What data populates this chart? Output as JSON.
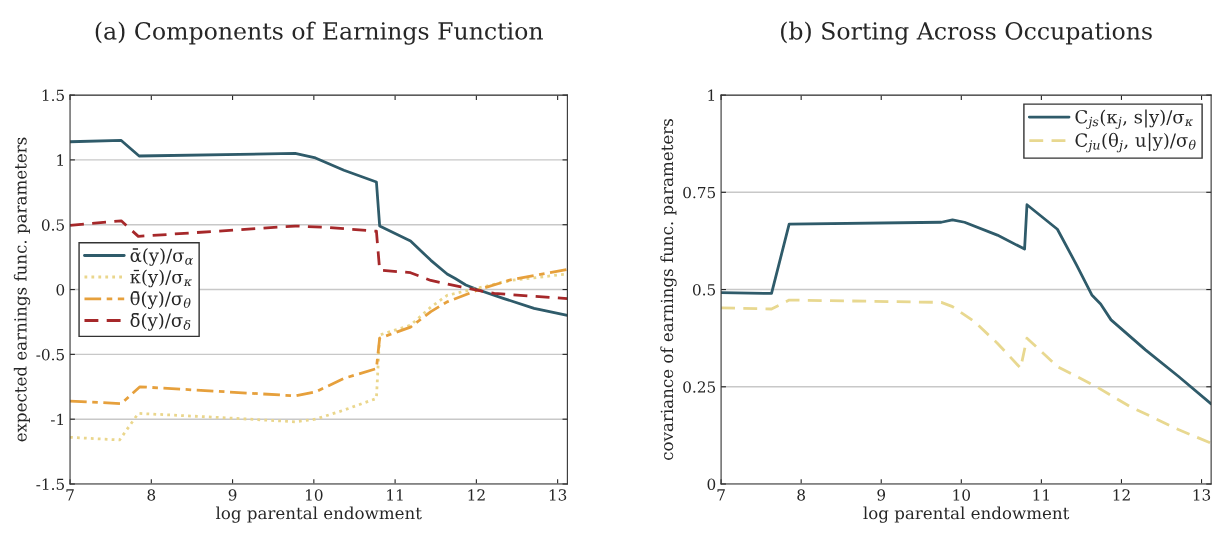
{
  "chart_data": [
    {
      "type": "line",
      "title": "(a) Components of Earnings Function",
      "xlabel": "log parental endowment",
      "ylabel": "expected earnings func. parameters",
      "xlim": [
        7,
        13.12
      ],
      "xticks": [
        7,
        8,
        9,
        10,
        11,
        12,
        13
      ],
      "ylim": [
        -1.5,
        1.5
      ],
      "yticks": [
        -1.5,
        -1,
        -0.5,
        0,
        0.5,
        1,
        1.5
      ],
      "grid": "y",
      "legend": "center left",
      "series": [
        {
          "name": "ᾱ(y)/σ$_{α}$",
          "color": "#2f5b6a",
          "line_style": "solid",
          "x": [
            7,
            7.63,
            7.85,
            9.77,
            10.02,
            10.37,
            10.77,
            10.81,
            11.19,
            11.44,
            11.64,
            11.74,
            11.87,
            12.01,
            12.34,
            12.71,
            13.12
          ],
          "values": [
            1.14,
            1.15,
            1.03,
            1.05,
            1.015,
            0.92,
            0.83,
            0.49,
            0.375,
            0.225,
            0.12,
            0.085,
            0.035,
            0,
            -0.07,
            -0.145,
            -0.2
          ]
        },
        {
          "name": "κ̄(y)/σ$_{κ}$",
          "color": "#ead68c",
          "line_style": "dotted",
          "x": [
            7,
            7.61,
            7.84,
            8.93,
            9.77,
            10.02,
            10.37,
            10.77,
            10.81,
            11.19,
            11.44,
            11.64,
            12.01,
            12.42,
            13.12
          ],
          "values": [
            -1.14,
            -1.16,
            -0.955,
            -0.99,
            -1.02,
            -1.0,
            -0.93,
            -0.84,
            -0.35,
            -0.275,
            -0.135,
            -0.045,
            0.01,
            0.07,
            0.12
          ]
        },
        {
          "name": "θ̄(y)/σ$_{θ}$",
          "color": "#e6a03c",
          "line_style": "dashdot",
          "x": [
            7,
            7.63,
            7.86,
            9.77,
            10.02,
            10.37,
            10.77,
            10.81,
            11.19,
            11.44,
            11.64,
            12.01,
            12.42,
            13.12
          ],
          "values": [
            -0.86,
            -0.88,
            -0.75,
            -0.82,
            -0.79,
            -0.685,
            -0.61,
            -0.375,
            -0.29,
            -0.17,
            -0.095,
            -0.005,
            0.075,
            0.155
          ]
        },
        {
          "name": "δ̄(y)/σ$_{δ}$",
          "color": "#a6282a",
          "line_style": "dashed",
          "x": [
            7,
            7.63,
            7.84,
            9.77,
            10.16,
            10.77,
            10.81,
            11.19,
            11.44,
            11.81,
            12.22,
            13.12
          ],
          "values": [
            0.495,
            0.53,
            0.41,
            0.49,
            0.48,
            0.45,
            0.15,
            0.13,
            0.07,
            0.02,
            -0.03,
            -0.07
          ]
        }
      ]
    },
    {
      "type": "line",
      "title": "(b) Sorting Across Occupations",
      "xlabel": "log parental endowment",
      "ylabel": "covariance of earnings func. parameters",
      "xlim": [
        7,
        13.12
      ],
      "xticks": [
        7,
        8,
        9,
        10,
        11,
        12,
        13
      ],
      "ylim": [
        0,
        1
      ],
      "yticks": [
        0,
        0.25,
        0.5,
        0.75,
        1
      ],
      "grid": "y",
      "legend": "upper right",
      "series": [
        {
          "name": "C$_{js}$(κ$_{j}$, s|y)/σ$_{κ}$",
          "color": "#2f5b6a",
          "line_style": "solid",
          "x": [
            7,
            7.63,
            7.85,
            9.75,
            9.89,
            10.04,
            10.45,
            10.79,
            10.82,
            11.2,
            11.44,
            11.63,
            11.74,
            11.87,
            12.3,
            12.71,
            13.12
          ],
          "values": [
            0.492,
            0.49,
            0.668,
            0.673,
            0.679,
            0.673,
            0.64,
            0.604,
            0.718,
            0.655,
            0.563,
            0.486,
            0.463,
            0.422,
            0.345,
            0.277,
            0.206
          ]
        },
        {
          "name": "C$_{ju}$(θ$_{j}$, u|y)/σ$_{θ}$",
          "color": "#e8d890",
          "line_style": "dashed",
          "x": [
            7,
            7.63,
            7.85,
            9.75,
            9.89,
            10.16,
            10.45,
            10.74,
            10.82,
            11.2,
            11.68,
            12.1,
            12.71,
            13.12
          ],
          "values": [
            0.453,
            0.45,
            0.473,
            0.467,
            0.456,
            0.418,
            0.362,
            0.298,
            0.375,
            0.302,
            0.251,
            0.2,
            0.14,
            0.105
          ]
        }
      ]
    }
  ]
}
